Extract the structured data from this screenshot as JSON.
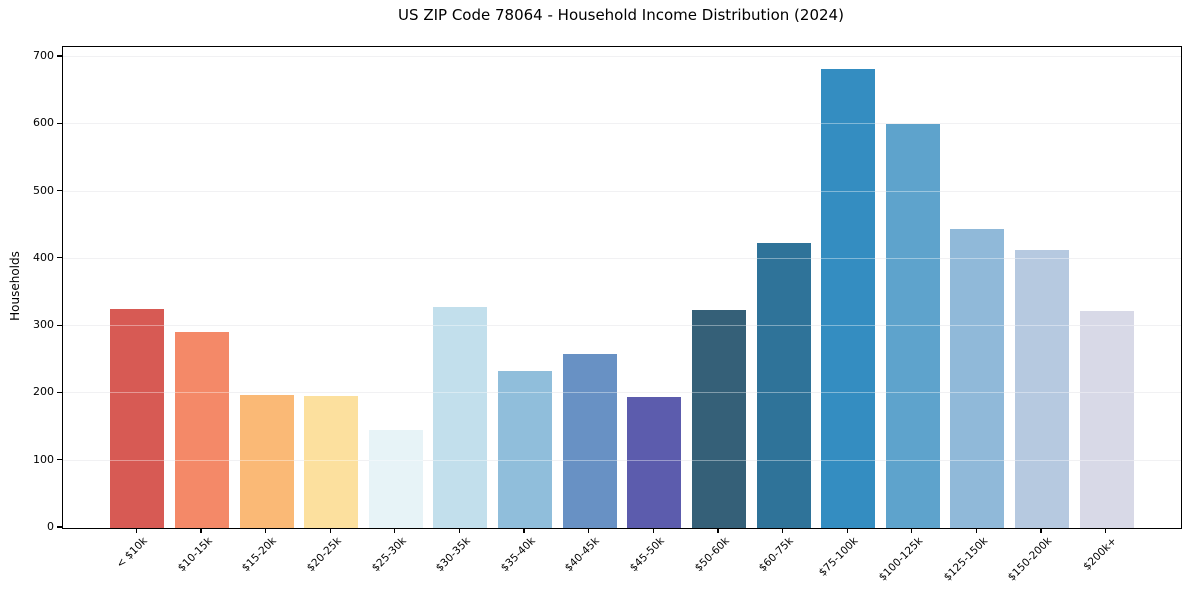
{
  "chart_data": {
    "type": "bar",
    "title": "US ZIP Code 78064 - Household Income Distribution (2024)",
    "xlabel": "",
    "ylabel": "Households",
    "ylim": [
      0,
      715
    ],
    "yticks": [
      0,
      100,
      200,
      300,
      400,
      500,
      600,
      700
    ],
    "grid": true,
    "legend": false,
    "categories": [
      "< $10k",
      "$10-15k",
      "$15-20k",
      "$20-25k",
      "$25-30k",
      "$30-35k",
      "$35-40k",
      "$40-45k",
      "$45-50k",
      "$50-60k",
      "$60-75k",
      "$75-100k",
      "$100-125k",
      "$125-150k",
      "$150-200k",
      "$200k+"
    ],
    "values": [
      326,
      291,
      198,
      196,
      145,
      328,
      233,
      259,
      195,
      324,
      424,
      683,
      601,
      444,
      414,
      323
    ],
    "bar_colors": [
      "#d75a54",
      "#f48968",
      "#fab976",
      "#fce09e",
      "#e7f3f7",
      "#c2dfec",
      "#90bedb",
      "#6891c4",
      "#5c5cad",
      "#356078",
      "#2f7399",
      "#348dc1",
      "#5ea3cc",
      "#90b9d9",
      "#b6c9e0",
      "#d8d9e7"
    ],
    "axis_color": "#000000",
    "grid_color": "#e9e9ec",
    "background_color": "#ffffff"
  }
}
